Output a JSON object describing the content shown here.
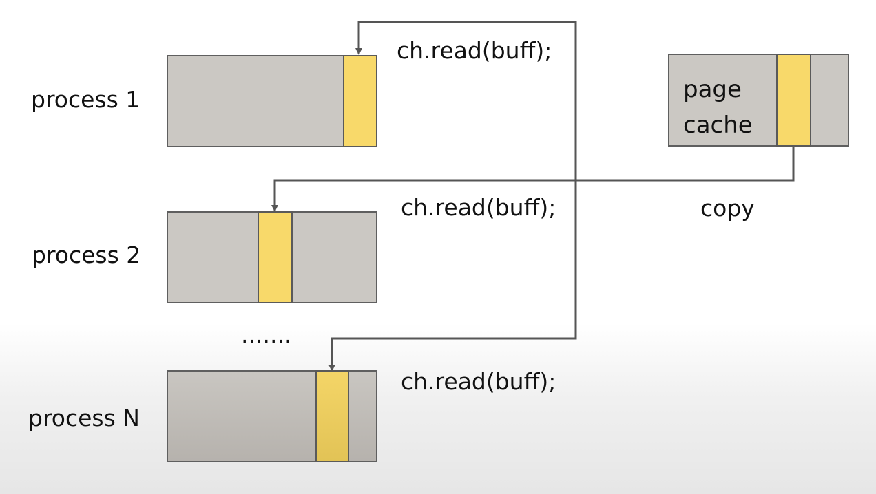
{
  "processes": [
    {
      "label": "process 1",
      "call": "ch.read(buff);"
    },
    {
      "label": "process 2",
      "call": "ch.read(buff);"
    },
    {
      "label": "process N",
      "call": "ch.read(buff);"
    }
  ],
  "ellipsis": ".......",
  "page_cache": {
    "line1": "page",
    "line2": "cache"
  },
  "copy_label": "copy",
  "colors": {
    "buffer": "#cbc8c3",
    "segment": "#f8d96a",
    "line": "#555555"
  }
}
